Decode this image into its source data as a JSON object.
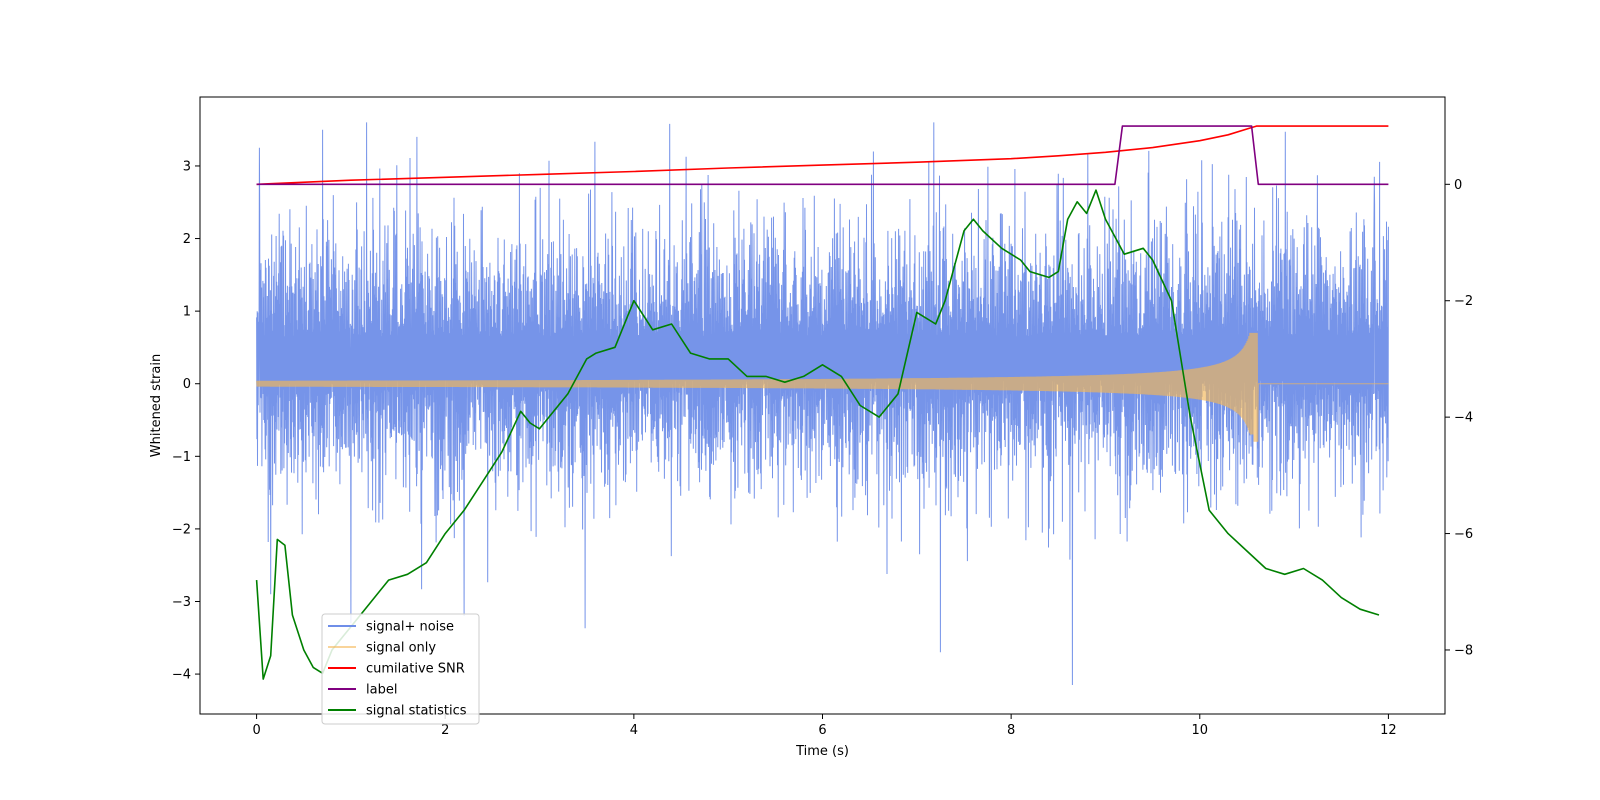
{
  "chart_data": {
    "type": "line",
    "xlabel": "Time (s)",
    "ylabel_left": "Whitened strain",
    "ylabel_right": "",
    "xlim": [
      -0.6,
      12.6
    ],
    "ylim_left": [
      -4.55,
      3.95
    ],
    "ylim_right": [
      -9.1,
      1.5
    ],
    "x_ticks": [
      0,
      2,
      4,
      6,
      8,
      10,
      12
    ],
    "x_tick_labels": [
      "0",
      "2",
      "4",
      "6",
      "8",
      "10",
      "12"
    ],
    "y_left_ticks": [
      -4,
      -3,
      -2,
      -1,
      0,
      1,
      2,
      3
    ],
    "y_left_tick_labels": [
      "−4",
      "−3",
      "−2",
      "−1",
      "0",
      "1",
      "2",
      "3"
    ],
    "y_right_ticks": [
      -8,
      -6,
      -4,
      -2,
      0
    ],
    "y_right_tick_labels": [
      "−8",
      "−6",
      "−4",
      "−2",
      "0"
    ],
    "grid": false,
    "legend_position": "lower-left",
    "series": [
      {
        "name": "signal+ noise",
        "axis": "left",
        "color": "#6f8ee8",
        "style": "noise",
        "x_range": [
          0,
          12
        ],
        "typical_range": [
          -1.6,
          2.4
        ],
        "spikes": [
          [
            0.03,
            3.25
          ],
          [
            0.7,
            3.5
          ],
          [
            1.7,
            3.4
          ],
          [
            4.38,
            3.58
          ],
          [
            11.85,
            2.85
          ],
          [
            7.25,
            -3.7
          ],
          [
            8.65,
            -4.15
          ],
          [
            2.2,
            -3.2
          ],
          [
            0.15,
            -2.9
          ],
          [
            1.0,
            -3.3
          ]
        ]
      },
      {
        "name": "signal only",
        "axis": "left",
        "color": "#f5b756",
        "style": "chirp",
        "x_range": [
          0,
          12
        ],
        "merger_time": 10.62,
        "amplitude_start": 0.04,
        "amplitude_peak": 0.7
      },
      {
        "name": "cumilative SNR",
        "axis": "right",
        "color": "#ff0000",
        "x": [
          0,
          1,
          2,
          3,
          4,
          5,
          6,
          7,
          7.5,
          8,
          8.5,
          9,
          9.5,
          10,
          10.3,
          10.5,
          10.6,
          10.65,
          11,
          12
        ],
        "values": [
          0.0,
          0.07,
          0.12,
          0.17,
          0.22,
          0.28,
          0.33,
          0.38,
          0.41,
          0.44,
          0.49,
          0.55,
          0.63,
          0.75,
          0.85,
          0.95,
          1.0,
          1.0,
          1.0,
          1.0
        ]
      },
      {
        "name": "label",
        "axis": "right",
        "color": "#800080",
        "x": [
          0,
          9.1,
          9.18,
          10.55,
          10.62,
          12
        ],
        "values": [
          0,
          0,
          1,
          1,
          0,
          0
        ]
      },
      {
        "name": "signal statistics",
        "axis": "right",
        "color": "#008000",
        "x": [
          0,
          0.07,
          0.15,
          0.22,
          0.3,
          0.38,
          0.5,
          0.6,
          0.7,
          0.8,
          1.0,
          1.2,
          1.4,
          1.6,
          1.8,
          2.0,
          2.2,
          2.4,
          2.6,
          2.8,
          2.9,
          3.0,
          3.3,
          3.5,
          3.6,
          3.8,
          4.0,
          4.2,
          4.4,
          4.6,
          4.8,
          5.0,
          5.2,
          5.4,
          5.6,
          5.8,
          6.0,
          6.2,
          6.4,
          6.6,
          6.8,
          7.0,
          7.2,
          7.3,
          7.5,
          7.6,
          7.7,
          7.9,
          8.1,
          8.2,
          8.4,
          8.5,
          8.6,
          8.7,
          8.8,
          8.9,
          9.0,
          9.2,
          9.4,
          9.5,
          9.7,
          9.9,
          10.1,
          10.3,
          10.5,
          10.7,
          10.9,
          11.1,
          11.3,
          11.5,
          11.7,
          11.9
        ],
        "values": [
          -6.8,
          -8.5,
          -8.1,
          -6.1,
          -6.2,
          -7.4,
          -8.0,
          -8.3,
          -8.4,
          -8.0,
          -7.6,
          -7.2,
          -6.8,
          -6.7,
          -6.5,
          -6.0,
          -5.6,
          -5.1,
          -4.6,
          -3.9,
          -4.1,
          -4.2,
          -3.6,
          -3.0,
          -2.9,
          -2.8,
          -2.0,
          -2.5,
          -2.4,
          -2.9,
          -3.0,
          -3.0,
          -3.3,
          -3.3,
          -3.4,
          -3.3,
          -3.1,
          -3.3,
          -3.8,
          -4.0,
          -3.6,
          -2.2,
          -2.4,
          -2.0,
          -0.8,
          -0.6,
          -0.8,
          -1.1,
          -1.3,
          -1.5,
          -1.6,
          -1.5,
          -0.6,
          -0.3,
          -0.5,
          -0.1,
          -0.6,
          -1.2,
          -1.1,
          -1.3,
          -2.0,
          -4.0,
          -5.6,
          -6.0,
          -6.3,
          -6.6,
          -6.7,
          -6.6,
          -6.8,
          -7.1,
          -7.3,
          -7.4
        ]
      }
    ]
  }
}
